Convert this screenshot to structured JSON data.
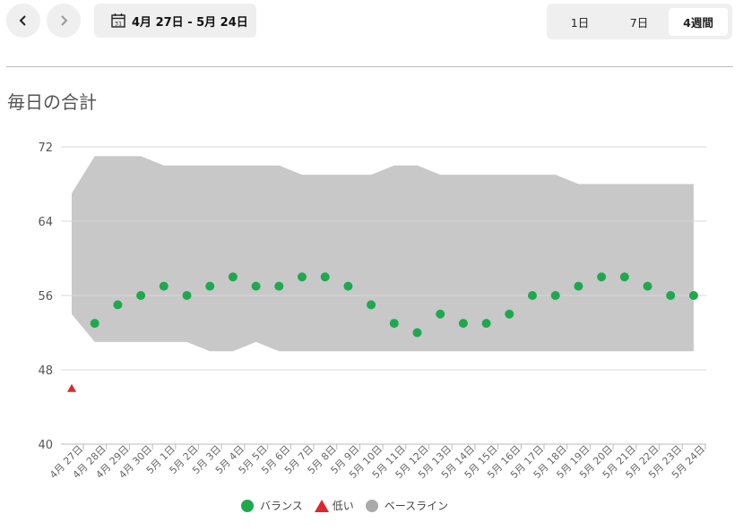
{
  "header": {
    "date_range": "4月 27日 - 5月 24日",
    "calendar_day": "31",
    "segments": [
      {
        "label": "1日",
        "active": false
      },
      {
        "label": "7日",
        "active": false
      },
      {
        "label": "4週間",
        "active": true
      }
    ]
  },
  "section_title": "毎日の合計",
  "colors": {
    "balance": "#1fa84f",
    "low": "#e0262d",
    "baseline": "#c8c8c8",
    "grid": "#d9d9d9"
  },
  "legend": [
    {
      "label": "バランス",
      "shape": "circle",
      "color": "#1fa84f"
    },
    {
      "label": "低い",
      "shape": "triangle",
      "color": "#e0262d"
    },
    {
      "label": "ベースライン",
      "shape": "circle",
      "color": "#aaaaaa"
    }
  ],
  "chart_data": {
    "type": "scatter",
    "title": "毎日の合計",
    "ylim": [
      40,
      72
    ],
    "yticks": [
      40,
      48,
      56,
      64,
      72
    ],
    "grid": true,
    "legend_position": "bottom",
    "categories": [
      "4月 27日",
      "4月 28日",
      "4月 29日",
      "4月 30日",
      "5月 1日",
      "5月 2日",
      "5月 3日",
      "5月 4日",
      "5月 5日",
      "5月 6日",
      "5月 7日",
      "5月 8日",
      "5月 9日",
      "5月 10日",
      "5月 11日",
      "5月 12日",
      "5月 13日",
      "5月 14日",
      "5月 15日",
      "5月 16日",
      "5月 17日",
      "5月 18日",
      "5月 19日",
      "5月 20日",
      "5月 21日",
      "5月 22日",
      "5月 23日",
      "5月 24日"
    ],
    "series": [
      {
        "name": "バランス",
        "values": [
          null,
          53,
          55,
          56,
          57,
          56,
          57,
          58,
          57,
          57,
          58,
          58,
          57,
          55,
          53,
          52,
          54,
          53,
          53,
          54,
          56,
          56,
          57,
          58,
          58,
          57,
          56,
          56
        ]
      },
      {
        "name": "低い",
        "values": [
          46,
          null,
          null,
          null,
          null,
          null,
          null,
          null,
          null,
          null,
          null,
          null,
          null,
          null,
          null,
          null,
          null,
          null,
          null,
          null,
          null,
          null,
          null,
          null,
          null,
          null,
          null,
          null
        ]
      },
      {
        "name": "ベースライン",
        "upper": [
          67,
          71,
          71,
          71,
          70,
          70,
          70,
          70,
          70,
          70,
          69,
          69,
          69,
          69,
          70,
          70,
          69,
          69,
          69,
          69,
          69,
          69,
          68,
          68,
          68,
          68,
          68,
          68
        ],
        "lower": [
          54,
          51,
          51,
          51,
          51,
          51,
          50,
          50,
          51,
          50,
          50,
          50,
          50,
          50,
          50,
          50,
          50,
          50,
          50,
          50,
          50,
          50,
          50,
          50,
          50,
          50,
          50,
          50
        ]
      }
    ]
  }
}
